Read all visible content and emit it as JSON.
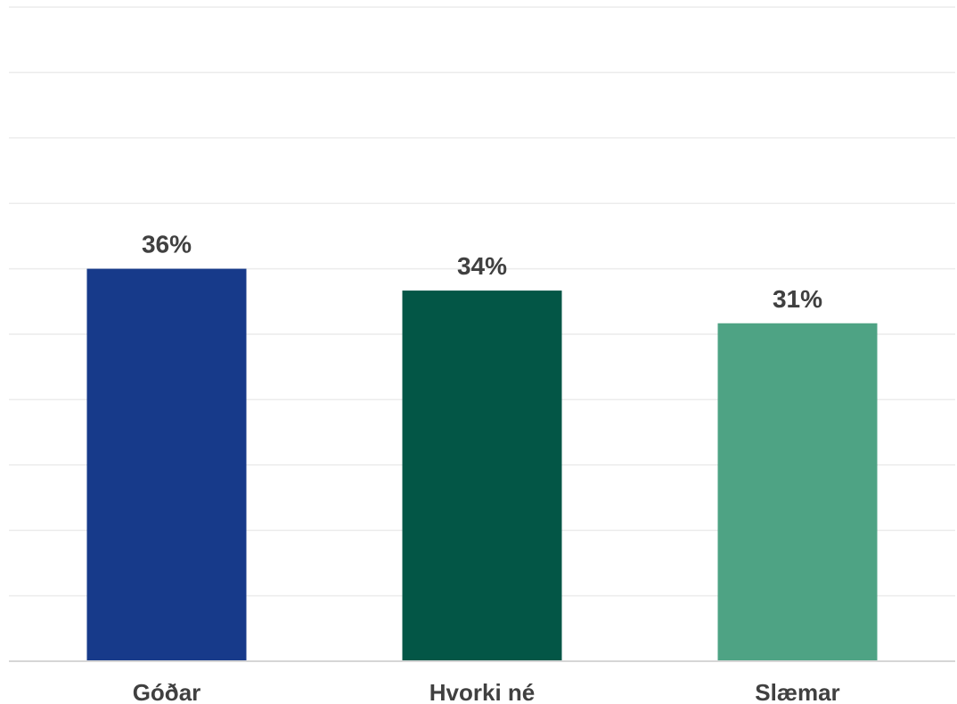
{
  "chart_data": {
    "type": "bar",
    "categories": [
      "Góðar",
      "Hvorki né",
      "Slæmar"
    ],
    "values": [
      36,
      34,
      31
    ],
    "value_labels": [
      "36%",
      "34%",
      "31%"
    ],
    "unit": "%",
    "ylim": [
      0,
      60
    ],
    "grid": true,
    "bar_colors": [
      "#173a8a",
      "#035646",
      "#4ea384"
    ]
  }
}
